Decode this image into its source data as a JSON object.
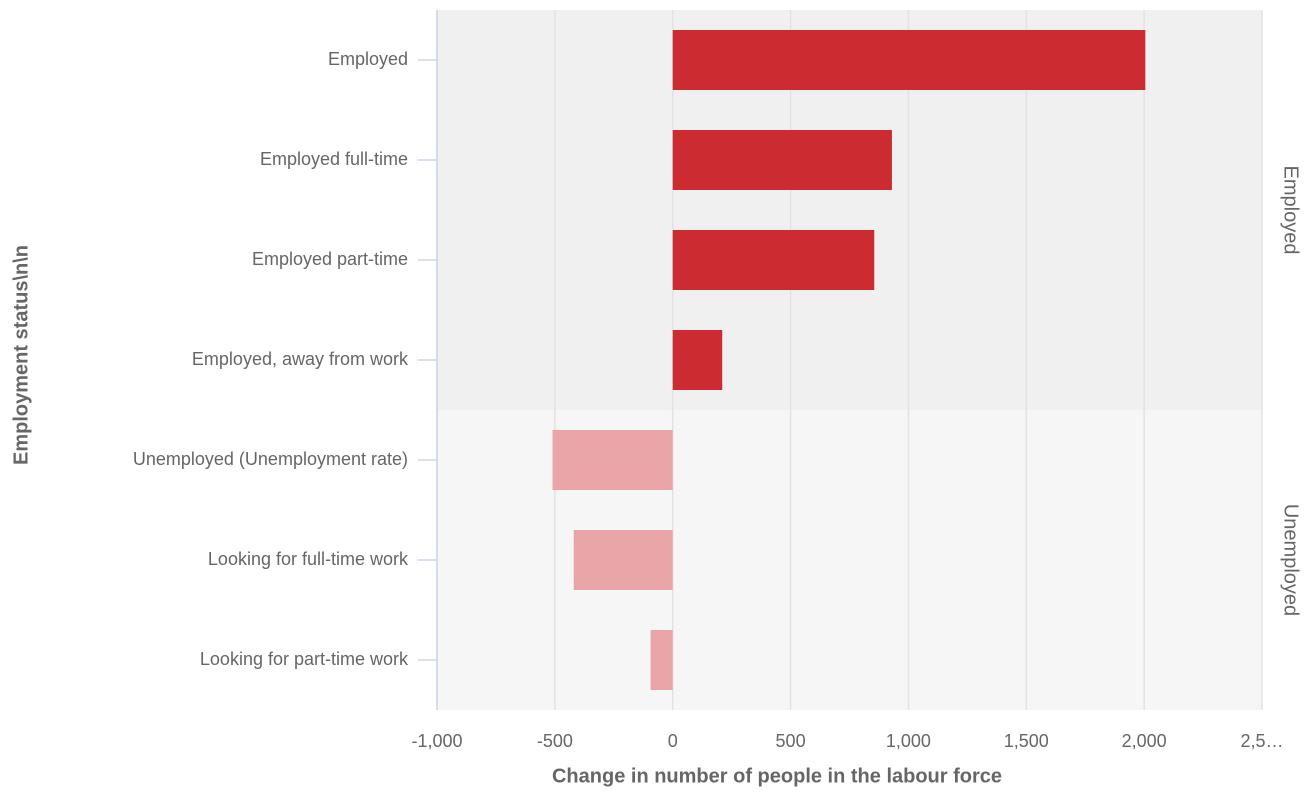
{
  "chart_data": {
    "type": "bar",
    "orientation": "horizontal",
    "x_label": "Change in number of people in the labour force",
    "y_label": "Employment status\\n\\n",
    "groups": [
      {
        "name": "Employed",
        "color": "#cc2b31",
        "background": "#f0f0f0",
        "categories": [
          "Employed",
          "Employed full-time",
          "Employed part-time",
          "Employed, away from work"
        ],
        "values": [
          2005,
          930,
          855,
          210
        ]
      },
      {
        "name": "Unemployed",
        "color": "#e9a5a7",
        "background": "#f6f6f6",
        "categories": [
          "Unemployed (Unemployment rate)",
          "Looking for full-time work",
          "Looking for part-time work"
        ],
        "values": [
          -510,
          -420,
          -94
        ]
      }
    ],
    "xlim": [
      -1000,
      2500
    ],
    "xticks": [
      {
        "value": -1000,
        "label": "-1,000"
      },
      -500,
      0,
      500,
      {
        "value": 1000,
        "label": "1,000"
      },
      {
        "value": 1500,
        "label": "1,500"
      },
      {
        "value": 2000,
        "label": "2,000"
      },
      {
        "value": 2500,
        "label": "2,5…"
      }
    ],
    "grid": true
  }
}
